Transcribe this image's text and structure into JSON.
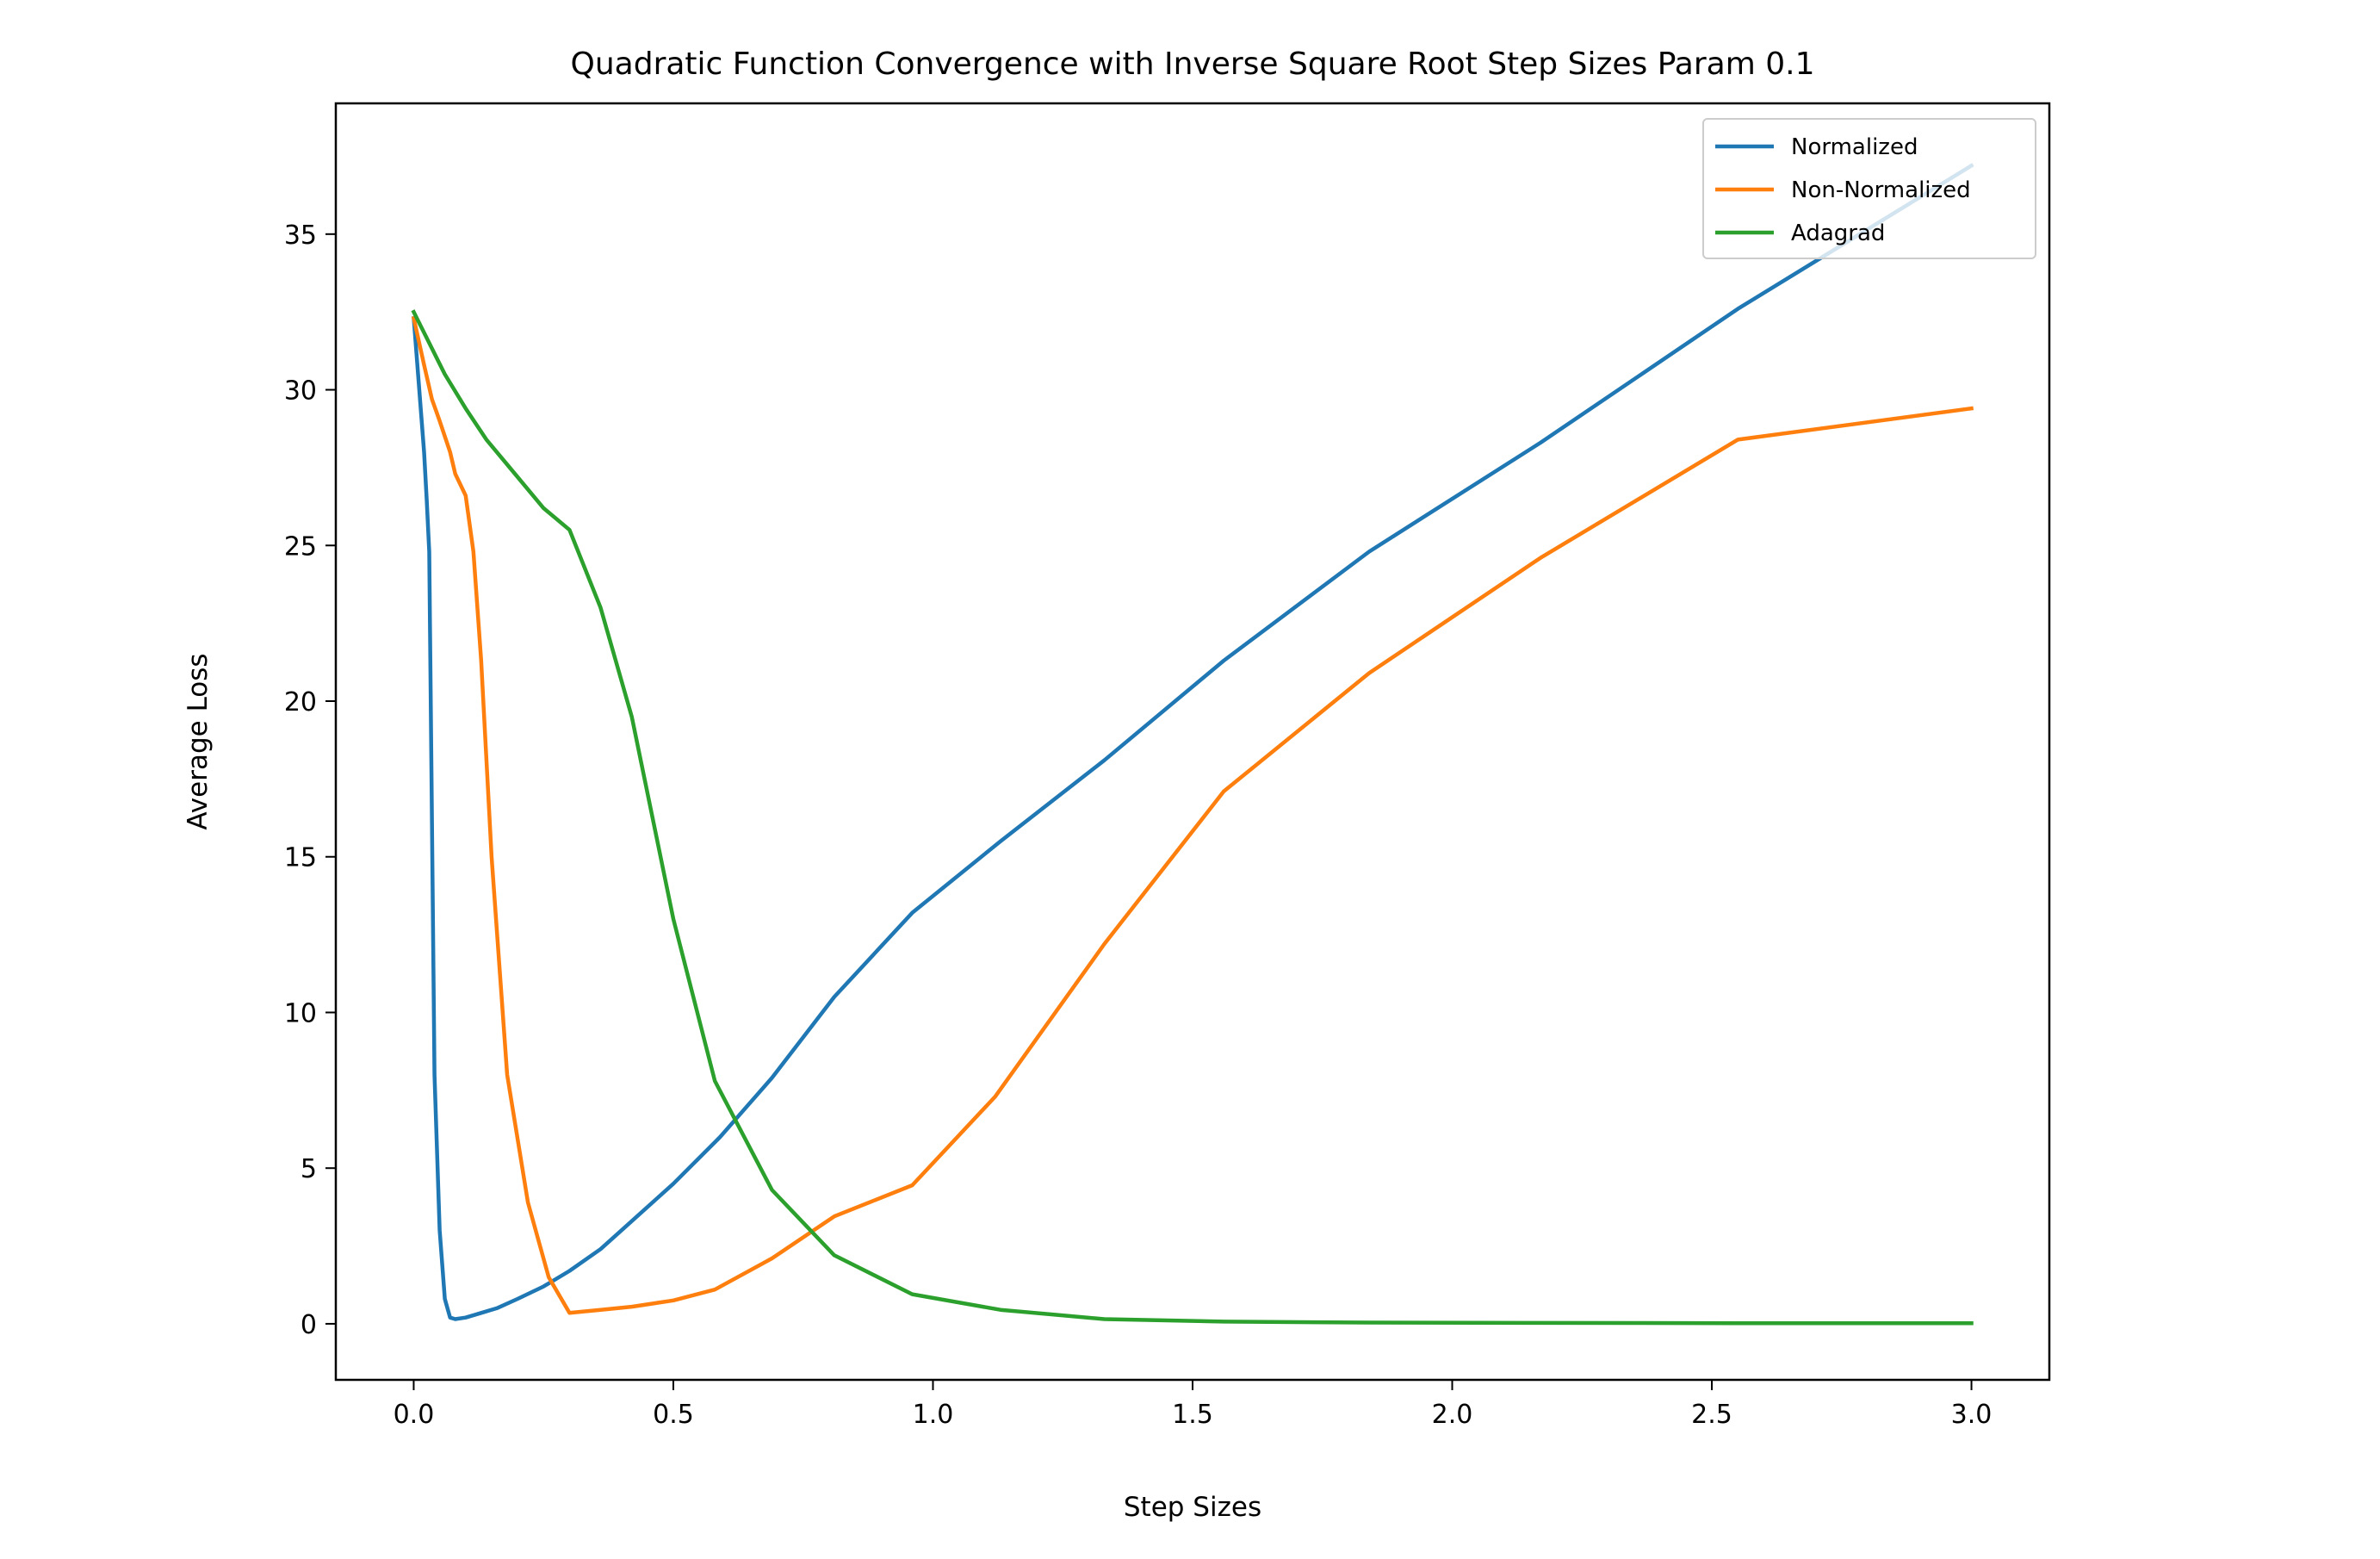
{
  "chart_data": {
    "type": "line",
    "title": "Quadratic Function Convergence with Inverse Square Root Step Sizes Param 0.1",
    "xlabel": "Step Sizes",
    "ylabel": "Average Loss",
    "xlim": [
      -0.15,
      3.15
    ],
    "ylim": [
      -1.8,
      39.2
    ],
    "xticks": [
      0.0,
      0.5,
      1.0,
      1.5,
      2.0,
      2.5,
      3.0
    ],
    "xtick_labels": [
      "0.0",
      "0.5",
      "1.0",
      "1.5",
      "2.0",
      "2.5",
      "3.0"
    ],
    "yticks": [
      0,
      5,
      10,
      15,
      20,
      25,
      30,
      35
    ],
    "ytick_labels": [
      "0",
      "5",
      "10",
      "15",
      "20",
      "25",
      "30",
      "35"
    ],
    "grid": false,
    "legend_position": "top-right",
    "series": [
      {
        "name": "Normalized",
        "color": "#1f77b4",
        "x": [
          0.0,
          0.02,
          0.025,
          0.03,
          0.04,
          0.05,
          0.06,
          0.07,
          0.08,
          0.1,
          0.13,
          0.16,
          0.2,
          0.25,
          0.3,
          0.36,
          0.42,
          0.5,
          0.59,
          0.69,
          0.81,
          0.96,
          1.13,
          1.33,
          1.56,
          1.84,
          2.17,
          2.55,
          3.0
        ],
        "y": [
          32.3,
          28.0,
          26.5,
          24.8,
          8.0,
          3.0,
          0.8,
          0.2,
          0.15,
          0.2,
          0.35,
          0.5,
          0.8,
          1.2,
          1.7,
          2.4,
          3.3,
          4.5,
          6.0,
          7.9,
          10.5,
          13.2,
          15.5,
          18.1,
          21.3,
          24.8,
          28.3,
          32.6,
          37.2
        ]
      },
      {
        "name": "Non-Normalized",
        "color": "#ff7f0e",
        "x": [
          0.0,
          0.02,
          0.035,
          0.05,
          0.07,
          0.08,
          0.1,
          0.115,
          0.13,
          0.15,
          0.18,
          0.22,
          0.26,
          0.3,
          0.36,
          0.42,
          0.5,
          0.58,
          0.69,
          0.81,
          0.96,
          1.12,
          1.33,
          1.56,
          1.84,
          2.17,
          2.55,
          3.0
        ],
        "y": [
          32.3,
          30.8,
          29.7,
          29.0,
          28.0,
          27.3,
          26.6,
          24.8,
          21.3,
          15.0,
          8.0,
          3.9,
          1.5,
          0.35,
          0.45,
          0.55,
          0.75,
          1.1,
          2.1,
          3.45,
          4.45,
          7.3,
          12.2,
          17.1,
          20.9,
          24.6,
          28.4,
          29.4
        ]
      },
      {
        "name": "Adagrad",
        "color": "#2ca02c",
        "x": [
          0.0,
          0.03,
          0.06,
          0.1,
          0.14,
          0.19,
          0.25,
          0.3,
          0.36,
          0.42,
          0.5,
          0.58,
          0.69,
          0.81,
          0.96,
          1.13,
          1.33,
          1.56,
          1.84,
          2.17,
          2.55,
          3.0
        ],
        "y": [
          32.5,
          31.5,
          30.5,
          29.4,
          28.4,
          27.4,
          26.2,
          25.5,
          23.0,
          19.5,
          13.0,
          7.8,
          4.3,
          2.2,
          0.95,
          0.45,
          0.15,
          0.07,
          0.04,
          0.03,
          0.02,
          0.02
        ]
      }
    ]
  }
}
